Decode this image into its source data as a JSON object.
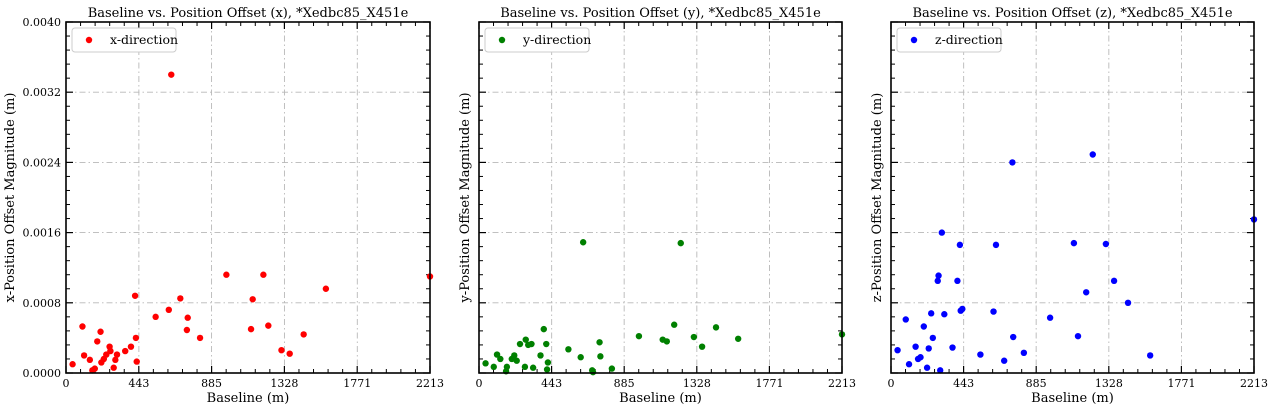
{
  "chart_data": [
    {
      "type": "scatter",
      "title": "Baseline vs. Position Offset (x), *Xedbc85_X451e",
      "xlabel": "Baseline (m)",
      "ylabel": "x-Position Offset Magnitude (m)",
      "xlim": [
        0,
        2213
      ],
      "ylim": [
        0,
        0.004
      ],
      "xticks": [
        "0",
        "443",
        "885",
        "1328",
        "1771",
        "2213"
      ],
      "yticks": [
        "0.0000",
        "0.0008",
        "0.0016",
        "0.0024",
        "0.0032",
        "0.0040"
      ],
      "grid": true,
      "legend_position": "top-left",
      "series": [
        {
          "name": "x-direction",
          "color": "#ff0000",
          "points": [
            [
              40,
              0.0001
            ],
            [
              100,
              0.00053
            ],
            [
              110,
              0.0002
            ],
            [
              145,
              0.00015
            ],
            [
              160,
              3e-05
            ],
            [
              175,
              5e-05
            ],
            [
              190,
              0.00036
            ],
            [
              210,
              0.00047
            ],
            [
              215,
              0.00012
            ],
            [
              230,
              0.00016
            ],
            [
              245,
              0.00021
            ],
            [
              265,
              0.0003
            ],
            [
              270,
              0.00025
            ],
            [
              290,
              6e-05
            ],
            [
              300,
              0.00015
            ],
            [
              310,
              0.00021
            ],
            [
              360,
              0.00025
            ],
            [
              395,
              0.0003
            ],
            [
              420,
              0.00088
            ],
            [
              425,
              0.0004
            ],
            [
              430,
              0.00013
            ],
            [
              545,
              0.00064
            ],
            [
              625,
              0.00072
            ],
            [
              640,
              0.0034
            ],
            [
              695,
              0.00085
            ],
            [
              735,
              0.00049
            ],
            [
              740,
              0.00063
            ],
            [
              815,
              0.0004
            ],
            [
              975,
              0.00112
            ],
            [
              1125,
              0.0005
            ],
            [
              1135,
              0.00084
            ],
            [
              1200,
              0.00112
            ],
            [
              1230,
              0.00054
            ],
            [
              1310,
              0.00026
            ],
            [
              1360,
              0.00022
            ],
            [
              1445,
              0.00044
            ],
            [
              1580,
              0.00096
            ],
            [
              2213,
              0.0011
            ]
          ]
        }
      ]
    },
    {
      "type": "scatter",
      "title": "Baseline vs. Position Offset (y), *Xedbc85_X451e",
      "xlabel": "Baseline (m)",
      "ylabel": "y-Position Offset Magnitude (m)",
      "xlim": [
        0,
        2213
      ],
      "ylim": [
        0,
        0.004
      ],
      "xticks": [
        "0",
        "443",
        "885",
        "1328",
        "1771",
        "2213"
      ],
      "yticks": [],
      "grid": true,
      "legend_position": "top-left",
      "series": [
        {
          "name": "y-direction",
          "color": "#008000",
          "points": [
            [
              40,
              0.00011
            ],
            [
              90,
              7e-05
            ],
            [
              110,
              0.00021
            ],
            [
              130,
              0.00016
            ],
            [
              165,
              2e-05
            ],
            [
              170,
              7e-05
            ],
            [
              200,
              0.00016
            ],
            [
              215,
              0.0002
            ],
            [
              230,
              0.00014
            ],
            [
              250,
              0.00033
            ],
            [
              280,
              7e-05
            ],
            [
              285,
              0.00038
            ],
            [
              300,
              0.00032
            ],
            [
              320,
              0.00033
            ],
            [
              330,
              6e-05
            ],
            [
              375,
              0.0002
            ],
            [
              395,
              0.0005
            ],
            [
              410,
              0.00033
            ],
            [
              415,
              4e-05
            ],
            [
              420,
              0.00012
            ],
            [
              545,
              0.00027
            ],
            [
              620,
              0.00018
            ],
            [
              635,
              0.00149
            ],
            [
              690,
              3e-05
            ],
            [
              695,
              1e-05
            ],
            [
              735,
              0.00035
            ],
            [
              740,
              0.00019
            ],
            [
              810,
              5e-05
            ],
            [
              975,
              0.00042
            ],
            [
              1120,
              0.00038
            ],
            [
              1145,
              0.00036
            ],
            [
              1190,
              0.00055
            ],
            [
              1230,
              0.00148
            ],
            [
              1310,
              0.00041
            ],
            [
              1360,
              0.0003
            ],
            [
              1445,
              0.00052
            ],
            [
              1580,
              0.00039
            ],
            [
              2213,
              0.00044
            ]
          ]
        }
      ]
    },
    {
      "type": "scatter",
      "title": "Baseline vs. Position Offset (z), *Xedbc85_X451e",
      "xlabel": "Baseline (m)",
      "ylabel": "z-Position Offset Magnitude (m)",
      "xlim": [
        0,
        2213
      ],
      "ylim": [
        0,
        0.004
      ],
      "xticks": [
        "0",
        "443",
        "885",
        "1328",
        "1771",
        "2213"
      ],
      "yticks": [],
      "grid": true,
      "legend_position": "top-left",
      "series": [
        {
          "name": "z-direction",
          "color": "#0000ff",
          "points": [
            [
              40,
              0.00026
            ],
            [
              90,
              0.00061
            ],
            [
              110,
              0.0001
            ],
            [
              150,
              0.0003
            ],
            [
              165,
              0.00016
            ],
            [
              180,
              0.00018
            ],
            [
              200,
              0.00053
            ],
            [
              220,
              6e-05
            ],
            [
              230,
              0.00028
            ],
            [
              245,
              0.00068
            ],
            [
              255,
              0.0004
            ],
            [
              285,
              0.00105
            ],
            [
              290,
              0.00111
            ],
            [
              300,
              3e-05
            ],
            [
              310,
              0.0016
            ],
            [
              325,
              0.00067
            ],
            [
              375,
              0.00029
            ],
            [
              405,
              0.00105
            ],
            [
              420,
              0.00146
            ],
            [
              425,
              0.00071
            ],
            [
              435,
              0.00073
            ],
            [
              545,
              0.00021
            ],
            [
              625,
              0.0007
            ],
            [
              640,
              0.00146
            ],
            [
              690,
              0.00014
            ],
            [
              740,
              0.0024
            ],
            [
              745,
              0.00041
            ],
            [
              810,
              0.00023
            ],
            [
              970,
              0.00063
            ],
            [
              1115,
              0.00148
            ],
            [
              1140,
              0.00042
            ],
            [
              1190,
              0.00092
            ],
            [
              1230,
              0.00249
            ],
            [
              1310,
              0.00147
            ],
            [
              1360,
              0.00105
            ],
            [
              1445,
              0.0008
            ],
            [
              1580,
              0.0002
            ],
            [
              2213,
              0.00175
            ]
          ]
        }
      ]
    }
  ]
}
